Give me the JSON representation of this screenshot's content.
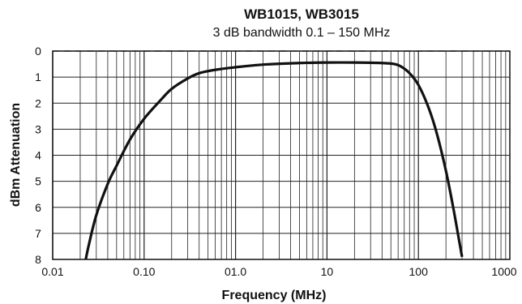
{
  "chart_data": {
    "type": "line",
    "title": "WB1015, WB3015",
    "subtitle": "3 dB bandwidth 0.1 – 150 MHz",
    "xlabel": "Frequency (MHz)",
    "ylabel": "dBm Attenuation",
    "x_scale": "log",
    "xlim": [
      0.01,
      1000
    ],
    "ylim": [
      0,
      8
    ],
    "y_inverted": true,
    "x_tick_values": [
      0.01,
      0.1,
      1,
      10,
      100,
      1000
    ],
    "x_tick_labels": [
      "0.01",
      "0.10",
      "01.0",
      "10",
      "100",
      "1000"
    ],
    "y_tick_values": [
      0,
      1,
      2,
      3,
      4,
      5,
      6,
      7,
      8
    ],
    "y_tick_labels": [
      "0",
      "1",
      "2",
      "3",
      "4",
      "5",
      "6",
      "7",
      "8"
    ],
    "grid": true,
    "reference_line": {
      "y": 0,
      "style": "dashed"
    },
    "series": [
      {
        "x": [
          0.023,
          0.025,
          0.03,
          0.04,
          0.05,
          0.07,
          0.1,
          0.15,
          0.2,
          0.3,
          0.4,
          0.6,
          1,
          2,
          5,
          10,
          20,
          40,
          55,
          65,
          80,
          100,
          130,
          160,
          200,
          240,
          270,
          300
        ],
        "y": [
          8,
          7.4,
          6.3,
          5.1,
          4.4,
          3.4,
          2.6,
          1.9,
          1.45,
          1.05,
          0.85,
          0.72,
          0.62,
          0.52,
          0.46,
          0.44,
          0.44,
          0.46,
          0.5,
          0.6,
          0.85,
          1.3,
          2.2,
          3.2,
          4.6,
          6.0,
          7.0,
          7.9
        ]
      }
    ]
  }
}
